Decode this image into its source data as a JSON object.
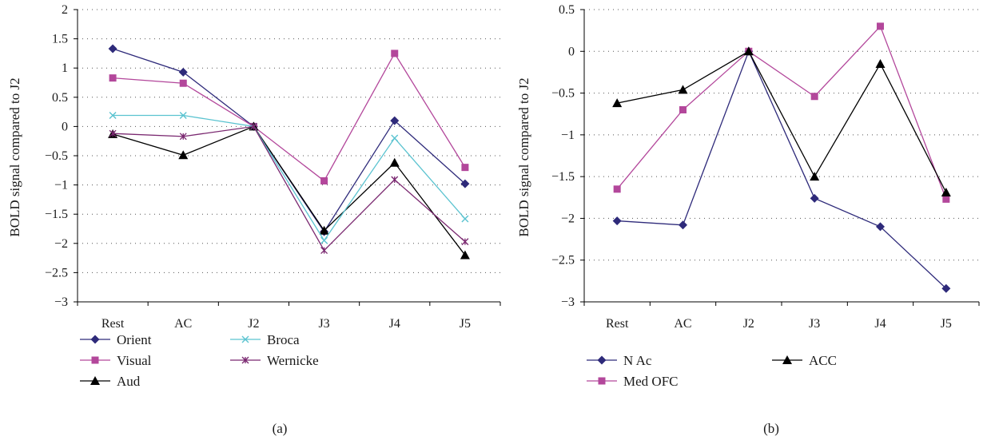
{
  "chart_data": [
    {
      "type": "line",
      "caption": "(a)",
      "ylabel": "BOLD signal compared to J2",
      "categories": [
        "Rest",
        "AC",
        "J2",
        "J3",
        "J4",
        "J5"
      ],
      "ylim": [
        -3,
        2
      ],
      "yticks": [
        "2",
        "1.5",
        "1",
        "0.5",
        "0",
        "-0.5",
        "-1",
        "-1.5",
        "-2",
        "-2.5",
        "-3"
      ],
      "grid": "horizontal dotted",
      "legend_position": "bottom",
      "series": [
        {
          "name": "Orient",
          "color": "#2e2a7a",
          "marker": "diamond",
          "values": [
            1.33,
            0.93,
            0.0,
            -1.8,
            0.1,
            -0.98
          ]
        },
        {
          "name": "Visual",
          "color": "#b3479b",
          "marker": "square",
          "values": [
            0.83,
            0.74,
            0.0,
            -0.93,
            1.25,
            -0.7
          ]
        },
        {
          "name": "Aud",
          "color": "#000000",
          "marker": "triangle",
          "values": [
            -0.13,
            -0.49,
            0.0,
            -1.78,
            -0.62,
            -2.2
          ]
        },
        {
          "name": "Broca",
          "color": "#5bc3d0",
          "marker": "x",
          "values": [
            0.19,
            0.19,
            0.0,
            -1.95,
            -0.2,
            -1.58
          ]
        },
        {
          "name": "Wernicke",
          "color": "#7a2870",
          "marker": "star",
          "values": [
            -0.12,
            -0.17,
            0.0,
            -2.12,
            -0.91,
            -1.97
          ]
        }
      ]
    },
    {
      "type": "line",
      "caption": "(b)",
      "ylabel": "BOLD signal compared to J2",
      "categories": [
        "Rest",
        "AC",
        "J2",
        "J3",
        "J4",
        "J5"
      ],
      "ylim": [
        -3,
        0.5
      ],
      "yticks": [
        "0.5",
        "0",
        "-0.5",
        "-1",
        "-1.5",
        "-2",
        "-2.5",
        "-3"
      ],
      "grid": "horizontal dotted",
      "legend_position": "bottom",
      "series": [
        {
          "name": "N Ac",
          "color": "#2e2a7a",
          "marker": "diamond",
          "values": [
            -2.03,
            -2.08,
            0.0,
            -1.76,
            -2.1,
            -2.84
          ]
        },
        {
          "name": "Med OFC",
          "color": "#b3479b",
          "marker": "square",
          "values": [
            -1.65,
            -0.7,
            0.0,
            -0.54,
            0.3,
            -1.77
          ]
        },
        {
          "name": "ACC",
          "color": "#000000",
          "marker": "triangle",
          "values": [
            -0.62,
            -0.46,
            0.0,
            -1.5,
            -0.15,
            -1.69
          ]
        }
      ]
    }
  ]
}
